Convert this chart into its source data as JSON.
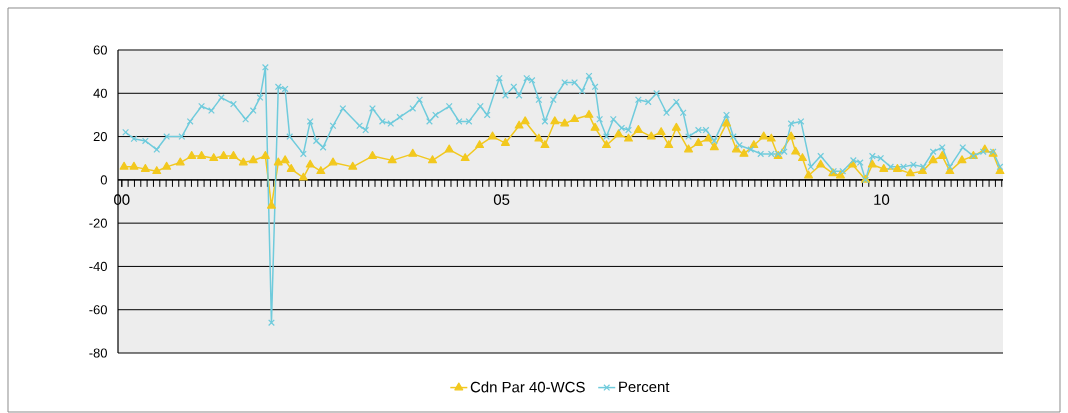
{
  "chart_data": {
    "type": "line",
    "xlim": [
      -0.05,
      11.6
    ],
    "ylim": [
      -80,
      60
    ],
    "xticks": [
      {
        "value": 0,
        "label": "00"
      },
      {
        "value": 5,
        "label": "05"
      },
      {
        "value": 10,
        "label": "10"
      }
    ],
    "yticks": [
      -80,
      -60,
      -40,
      -20,
      0,
      20,
      40,
      60
    ],
    "grid": "y",
    "legend": "bottom",
    "series": [
      {
        "name": "Cdn Par 40-WCS",
        "color": "#f2c81e",
        "marker": "triangle",
        "x": [
          0.03,
          0.16,
          0.31,
          0.46,
          0.59,
          0.77,
          0.92,
          1.05,
          1.21,
          1.34,
          1.47,
          1.6,
          1.73,
          1.89,
          1.97,
          2.06,
          2.15,
          2.23,
          2.39,
          2.48,
          2.62,
          2.78,
          3.04,
          3.3,
          3.56,
          3.83,
          4.09,
          4.31,
          4.52,
          4.71,
          4.88,
          5.05,
          5.23,
          5.31,
          5.49,
          5.57,
          5.7,
          5.83,
          5.96,
          6.15,
          6.23,
          6.38,
          6.54,
          6.67,
          6.8,
          6.97,
          7.1,
          7.2,
          7.3,
          7.46,
          7.59,
          7.72,
          7.8,
          7.96,
          8.09,
          8.19,
          8.32,
          8.45,
          8.55,
          8.64,
          8.81,
          8.87,
          8.96,
          9.04,
          9.2,
          9.36,
          9.46,
          9.62,
          9.79,
          9.88,
          10.03,
          10.21,
          10.38,
          10.54,
          10.68,
          10.8,
          10.9,
          11.06,
          11.21,
          11.36,
          11.47,
          11.56
        ],
        "values": [
          6,
          6,
          5,
          4,
          6,
          8,
          11,
          11,
          10,
          11,
          11,
          8,
          9,
          11,
          -12,
          8,
          9,
          5,
          1,
          7,
          4,
          8,
          6,
          11,
          9,
          12,
          9,
          14,
          10,
          16,
          20,
          17,
          25,
          27,
          19,
          16,
          27,
          26,
          28,
          30,
          24,
          16,
          21,
          19,
          23,
          20,
          22,
          16,
          24,
          14,
          17,
          19,
          15,
          26,
          14,
          12,
          16,
          20,
          19,
          11,
          20,
          13,
          10,
          2,
          7,
          3,
          2,
          7,
          0,
          7,
          5,
          5,
          3,
          4,
          9,
          11,
          4,
          9,
          11,
          14,
          12,
          4
        ]
      },
      {
        "name": "Percent",
        "color": "#6fcbdc",
        "marker": "cross",
        "x": [
          0.05,
          0.16,
          0.31,
          0.46,
          0.59,
          0.79,
          0.9,
          1.05,
          1.18,
          1.31,
          1.47,
          1.63,
          1.73,
          1.82,
          1.89,
          1.97,
          2.06,
          2.15,
          2.21,
          2.39,
          2.48,
          2.56,
          2.65,
          2.78,
          2.91,
          3.13,
          3.21,
          3.3,
          3.43,
          3.54,
          3.66,
          3.83,
          3.92,
          4.05,
          4.13,
          4.31,
          4.44,
          4.57,
          4.72,
          4.81,
          4.97,
          5.05,
          5.16,
          5.23,
          5.33,
          5.4,
          5.49,
          5.57,
          5.68,
          5.83,
          5.96,
          6.06,
          6.15,
          6.23,
          6.29,
          6.38,
          6.47,
          6.58,
          6.67,
          6.8,
          6.93,
          7.04,
          7.17,
          7.3,
          7.39,
          7.46,
          7.59,
          7.69,
          7.8,
          7.96,
          8.05,
          8.13,
          8.28,
          8.41,
          8.55,
          8.64,
          8.72,
          8.81,
          8.94,
          9.07,
          9.2,
          9.37,
          9.49,
          9.63,
          9.72,
          9.79,
          9.88,
          9.99,
          10.12,
          10.29,
          10.42,
          10.55,
          10.68,
          10.8,
          10.9,
          11.07,
          11.21,
          11.34,
          11.47,
          11.56
        ],
        "values": [
          22,
          19,
          18,
          14,
          20,
          20,
          27,
          34,
          32,
          38,
          35,
          28,
          32,
          38,
          52,
          -66,
          43,
          42,
          20,
          12,
          27,
          18,
          15,
          25,
          33,
          25,
          23,
          33,
          27,
          26,
          29,
          33,
          37,
          27,
          30,
          34,
          27,
          27,
          34,
          30,
          47,
          39,
          43,
          39,
          47,
          46,
          37,
          27,
          37,
          45,
          45,
          41,
          48,
          43,
          28,
          20,
          28,
          24,
          23,
          37,
          36,
          40,
          31,
          36,
          31,
          20,
          23,
          23,
          18,
          30,
          20,
          16,
          14,
          12,
          12,
          12,
          13,
          26,
          27,
          6,
          11,
          4,
          4,
          9,
          8,
          0,
          11,
          10,
          6,
          6,
          7,
          6,
          13,
          15,
          6,
          15,
          11,
          13,
          13,
          6
        ]
      }
    ]
  }
}
